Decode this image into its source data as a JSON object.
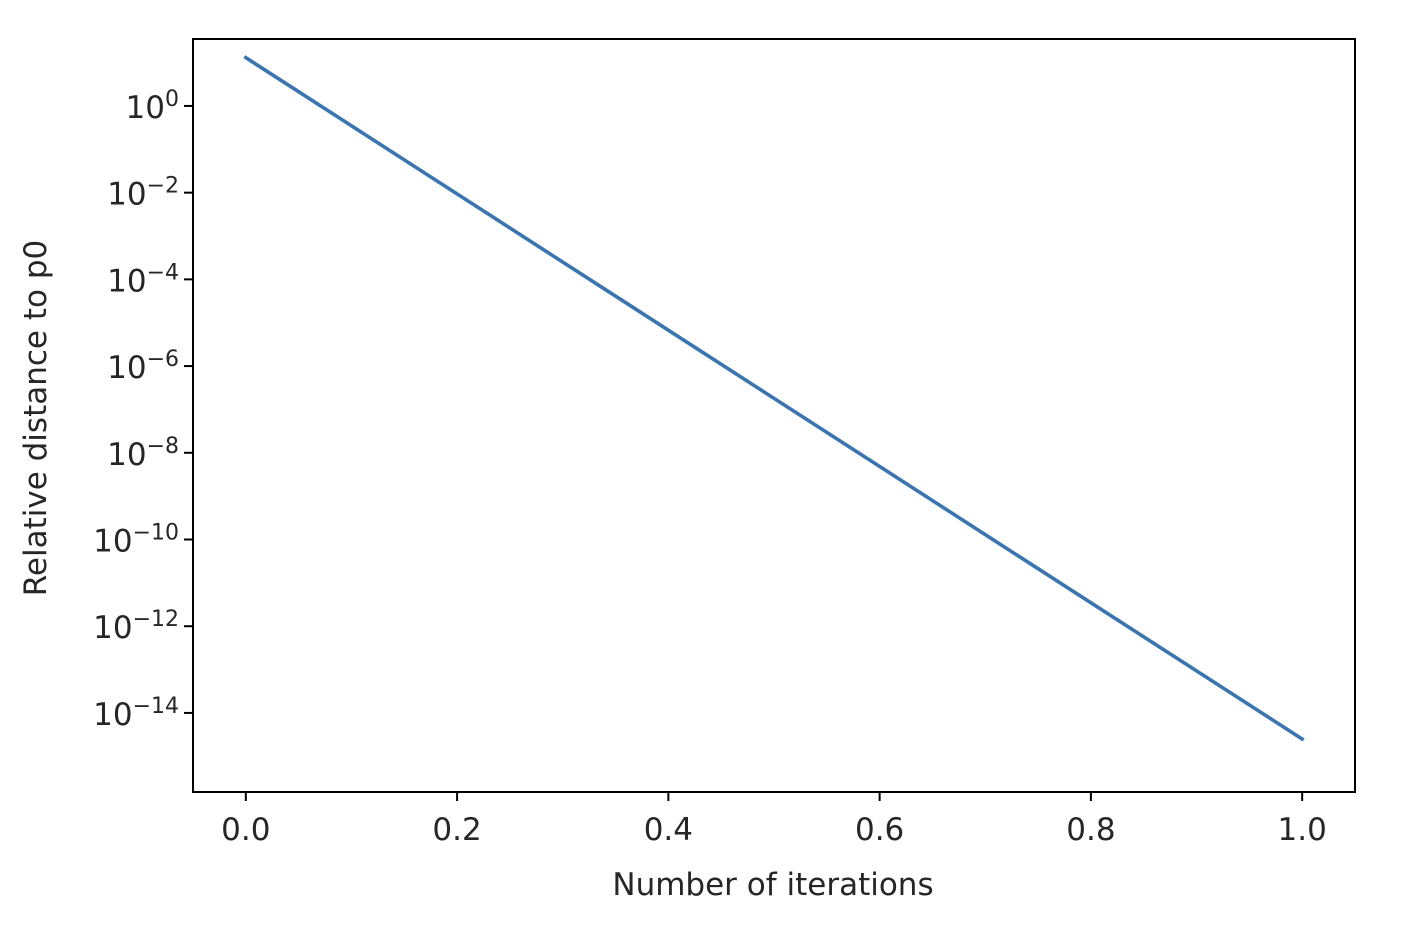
{
  "chart_data": {
    "type": "line",
    "title": "",
    "xlabel": "Number of iterations",
    "ylabel": "Relative distance to p0",
    "x_scale": "linear",
    "y_scale": "log",
    "xlim": [
      -0.05,
      1.05
    ],
    "ylim": [
      1.5e-16,
      35.0
    ],
    "x_ticks": [
      0.0,
      0.2,
      0.4,
      0.6,
      0.8,
      1.0
    ],
    "x_tick_labels": [
      "0.0",
      "0.2",
      "0.4",
      "0.6",
      "0.8",
      "1.0"
    ],
    "y_ticks": [
      1.0,
      0.01,
      0.0001,
      1e-06,
      1e-08,
      1e-10,
      1e-12,
      1e-14
    ],
    "y_tick_labels": [
      {
        "base": "10",
        "exp": "0"
      },
      {
        "base": "10",
        "exp": "−2"
      },
      {
        "base": "10",
        "exp": "−4"
      },
      {
        "base": "10",
        "exp": "−6"
      },
      {
        "base": "10",
        "exp": "−8"
      },
      {
        "base": "10",
        "exp": "−10"
      },
      {
        "base": "10",
        "exp": "−12"
      },
      {
        "base": "10",
        "exp": "−14"
      }
    ],
    "grid": false,
    "legend": "none",
    "series": [
      {
        "color": "#3b75af",
        "x": [
          0.0,
          1.0
        ],
        "y": [
          13.0,
          2.5e-15
        ]
      }
    ]
  }
}
